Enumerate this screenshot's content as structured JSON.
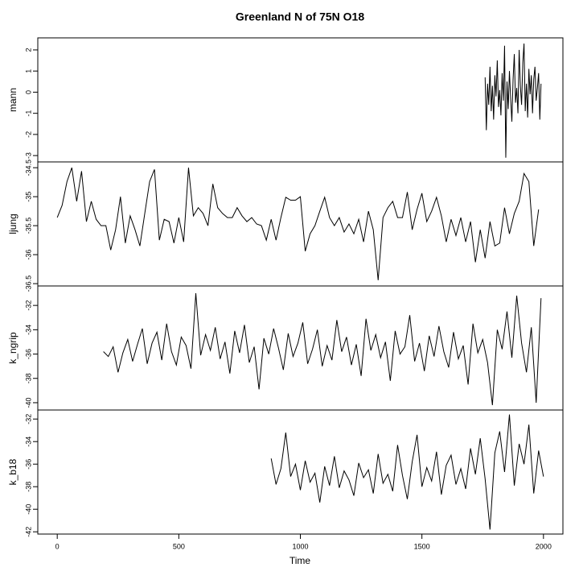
{
  "chart_data": {
    "type": "line",
    "title": "Greenland N of 75N O18",
    "x_label": "Time",
    "xlim": [
      -80,
      2080
    ],
    "xticks": [
      0,
      500,
      1000,
      1500,
      2000
    ],
    "series": [
      {
        "name": "mann",
        "color": "#000000",
        "ylim": [
          -3.3,
          2.57
        ],
        "yticks": [
          -3,
          -2,
          -1,
          0,
          1,
          2
        ],
        "x": [
          1760,
          1765,
          1770,
          1775,
          1780,
          1785,
          1790,
          1795,
          1800,
          1805,
          1810,
          1815,
          1820,
          1825,
          1830,
          1835,
          1840,
          1845,
          1850,
          1855,
          1860,
          1865,
          1870,
          1875,
          1880,
          1885,
          1890,
          1895,
          1900,
          1905,
          1910,
          1915,
          1920,
          1925,
          1930,
          1935,
          1940,
          1945,
          1950,
          1955,
          1960,
          1965,
          1970,
          1975,
          1980,
          1985,
          1990
        ],
        "values": [
          0.7,
          -1.8,
          0.4,
          -0.6,
          1.2,
          -0.9,
          0.3,
          -1.3,
          0.8,
          -0.2,
          1.5,
          -0.7,
          0.1,
          -1.1,
          0.9,
          -0.4,
          2.2,
          -3.1,
          0.5,
          -0.8,
          1.0,
          -0.3,
          -1.4,
          0.6,
          1.8,
          -0.5,
          0.2,
          -1.0,
          2.0,
          0.3,
          -0.6,
          1.4,
          2.3,
          -0.9,
          0.4,
          -1.2,
          1.1,
          -0.1,
          0.8,
          -1.0,
          0.6,
          1.2,
          -0.4,
          0.2,
          0.9,
          -1.3,
          0.4
        ]
      },
      {
        "name": "ljung",
        "color": "#000000",
        "ylim": [
          -36.54,
          -34.4
        ],
        "yticks": [
          -36.5,
          -36,
          -35.5,
          -35,
          -34.5
        ],
        "x": [
          0,
          20,
          40,
          60,
          80,
          100,
          120,
          140,
          160,
          180,
          200,
          220,
          240,
          260,
          280,
          300,
          320,
          340,
          360,
          380,
          400,
          420,
          440,
          460,
          480,
          500,
          520,
          540,
          560,
          580,
          600,
          620,
          640,
          660,
          680,
          700,
          720,
          740,
          760,
          780,
          800,
          820,
          840,
          860,
          880,
          900,
          920,
          940,
          960,
          980,
          1000,
          1020,
          1040,
          1060,
          1080,
          1100,
          1120,
          1140,
          1160,
          1180,
          1200,
          1220,
          1240,
          1260,
          1280,
          1300,
          1320,
          1340,
          1360,
          1380,
          1400,
          1420,
          1440,
          1460,
          1480,
          1500,
          1520,
          1540,
          1560,
          1580,
          1600,
          1620,
          1640,
          1660,
          1680,
          1700,
          1720,
          1740,
          1760,
          1780,
          1800,
          1820,
          1840,
          1860,
          1880,
          1900,
          1920,
          1940,
          1960,
          1980
        ],
        "values": [
          -35.36,
          -35.15,
          -34.74,
          -34.5,
          -35.08,
          -34.56,
          -35.43,
          -35.08,
          -35.39,
          -35.5,
          -35.5,
          -35.92,
          -35.57,
          -35.0,
          -35.8,
          -35.33,
          -35.57,
          -35.85,
          -35.29,
          -34.74,
          -34.53,
          -35.75,
          -35.39,
          -35.43,
          -35.8,
          -35.36,
          -35.78,
          -34.5,
          -35.33,
          -35.19,
          -35.29,
          -35.5,
          -34.78,
          -35.19,
          -35.29,
          -35.36,
          -35.36,
          -35.19,
          -35.33,
          -35.43,
          -35.36,
          -35.47,
          -35.5,
          -35.75,
          -35.39,
          -35.75,
          -35.36,
          -35.01,
          -35.06,
          -35.06,
          -35.0,
          -35.94,
          -35.64,
          -35.5,
          -35.25,
          -35.01,
          -35.36,
          -35.5,
          -35.36,
          -35.61,
          -35.47,
          -35.64,
          -35.39,
          -35.78,
          -35.25,
          -35.57,
          -36.44,
          -35.36,
          -35.19,
          -35.08,
          -35.36,
          -35.36,
          -34.92,
          -35.57,
          -35.22,
          -34.94,
          -35.43,
          -35.25,
          -35.01,
          -35.33,
          -35.78,
          -35.39,
          -35.67,
          -35.36,
          -35.78,
          -35.43,
          -36.13,
          -35.57,
          -36.06,
          -35.43,
          -35.85,
          -35.8,
          -35.19,
          -35.64,
          -35.29,
          -35.08,
          -34.6,
          -34.74,
          -35.85,
          -35.22
        ]
      },
      {
        "name": "k_ngrip",
        "color": "#000000",
        "ylim": [
          -40.6,
          -30.4
        ],
        "yticks": [
          -40,
          -38,
          -36,
          -34,
          -32
        ],
        "x": [
          190,
          210,
          230,
          250,
          270,
          290,
          310,
          330,
          350,
          370,
          390,
          410,
          430,
          450,
          470,
          490,
          510,
          530,
          550,
          570,
          590,
          610,
          630,
          650,
          670,
          690,
          710,
          730,
          750,
          770,
          790,
          810,
          830,
          850,
          870,
          890,
          910,
          930,
          950,
          970,
          990,
          1010,
          1030,
          1050,
          1070,
          1090,
          1110,
          1130,
          1150,
          1170,
          1190,
          1210,
          1230,
          1250,
          1270,
          1290,
          1310,
          1330,
          1350,
          1370,
          1390,
          1410,
          1430,
          1450,
          1470,
          1490,
          1510,
          1530,
          1550,
          1570,
          1590,
          1610,
          1630,
          1650,
          1670,
          1690,
          1710,
          1730,
          1750,
          1770,
          1790,
          1810,
          1830,
          1850,
          1870,
          1890,
          1910,
          1930,
          1950,
          1970,
          1990
        ],
        "values": [
          -35.8,
          -36.2,
          -35.4,
          -37.5,
          -35.9,
          -34.8,
          -36.6,
          -35.2,
          -33.9,
          -36.8,
          -35.1,
          -34.2,
          -36.5,
          -33.5,
          -35.8,
          -36.9,
          -34.6,
          -35.3,
          -37.2,
          -31.0,
          -36.1,
          -34.4,
          -35.7,
          -33.8,
          -36.4,
          -35.0,
          -37.6,
          -34.1,
          -35.9,
          -33.6,
          -36.7,
          -35.4,
          -38.9,
          -34.7,
          -36.0,
          -33.9,
          -35.5,
          -37.3,
          -34.3,
          -36.2,
          -35.1,
          -33.4,
          -36.8,
          -35.6,
          -34.0,
          -37.0,
          -35.3,
          -36.5,
          -33.2,
          -35.8,
          -34.6,
          -36.9,
          -35.2,
          -37.8,
          -33.1,
          -35.7,
          -34.4,
          -36.3,
          -35.0,
          -38.2,
          -34.1,
          -36.0,
          -35.4,
          -32.8,
          -36.6,
          -35.1,
          -37.4,
          -34.5,
          -36.2,
          -33.7,
          -35.8,
          -37.1,
          -34.2,
          -36.4,
          -35.3,
          -38.5,
          -33.5,
          -35.9,
          -34.8,
          -36.7,
          -40.2,
          -34.0,
          -35.6,
          -32.5,
          -36.3,
          -31.2,
          -35.1,
          -37.5,
          -33.8,
          -40.0,
          -31.4
        ]
      },
      {
        "name": "k_b18",
        "color": "#000000",
        "ylim": [
          -42.2,
          -31.2
        ],
        "yticks": [
          -42,
          -40,
          -38,
          -36,
          -34,
          -32
        ],
        "x": [
          880,
          900,
          920,
          940,
          960,
          980,
          1000,
          1020,
          1040,
          1060,
          1080,
          1100,
          1120,
          1140,
          1160,
          1180,
          1200,
          1220,
          1240,
          1260,
          1280,
          1300,
          1320,
          1340,
          1360,
          1380,
          1400,
          1420,
          1440,
          1460,
          1480,
          1500,
          1520,
          1540,
          1560,
          1580,
          1600,
          1620,
          1640,
          1660,
          1680,
          1700,
          1720,
          1740,
          1760,
          1780,
          1800,
          1820,
          1840,
          1860,
          1880,
          1900,
          1920,
          1940,
          1960,
          1980,
          2000
        ],
        "values": [
          -35.5,
          -37.8,
          -36.4,
          -33.2,
          -37.1,
          -36.0,
          -38.3,
          -35.7,
          -37.6,
          -36.8,
          -39.4,
          -36.2,
          -37.9,
          -35.3,
          -38.1,
          -36.6,
          -37.4,
          -38.8,
          -35.9,
          -37.2,
          -36.5,
          -38.6,
          -35.1,
          -37.7,
          -36.9,
          -38.4,
          -34.3,
          -37.0,
          -39.1,
          -35.8,
          -33.4,
          -38.0,
          -36.3,
          -37.5,
          -34.9,
          -38.7,
          -36.1,
          -35.2,
          -37.8,
          -36.4,
          -38.2,
          -34.6,
          -36.9,
          -33.7,
          -37.3,
          -41.8,
          -35.0,
          -33.1,
          -36.7,
          -31.6,
          -37.9,
          -34.2,
          -36.0,
          -32.5,
          -38.6,
          -34.8,
          -37.1
        ]
      }
    ]
  }
}
